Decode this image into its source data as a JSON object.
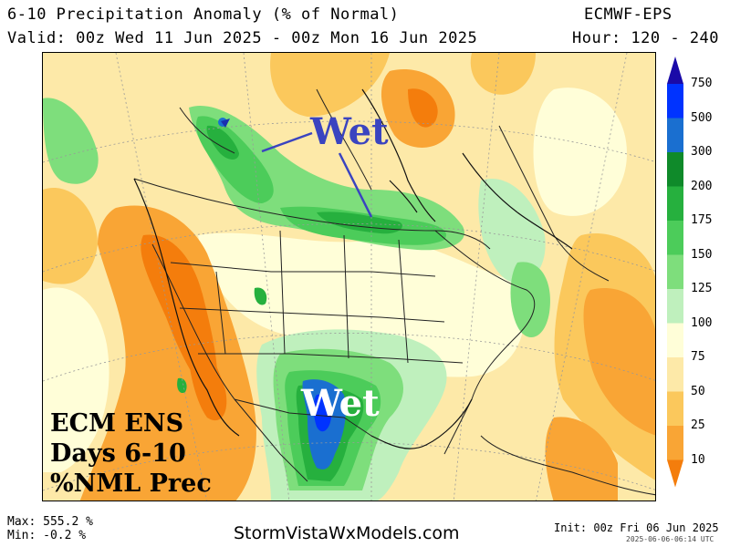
{
  "header": {
    "title": "6-10 Precipitation Anomaly (% of Normal)",
    "model": "ECMWF-EPS",
    "valid": "Valid: 00z Wed 11 Jun 2025 - 00z Mon 16 Jun 2025",
    "hours": "Hour: 120 - 240"
  },
  "annotations": {
    "wet_north": "Wet",
    "wet_south": "Wet",
    "box_line1": "ECM ENS",
    "box_line2": "Days 6-10",
    "box_line3": "%NML Prec"
  },
  "legend": {
    "levels": [
      "750",
      "500",
      "300",
      "200",
      "175",
      "150",
      "125",
      "100",
      "75",
      "50",
      "25",
      "10"
    ],
    "colors": [
      "#1a0aa8",
      "#0033ff",
      "#1a6fd0",
      "#0f8a2a",
      "#26b03e",
      "#4ccc5a",
      "#7ede7c",
      "#bff0bd",
      "#fffed8",
      "#fde9a8",
      "#fbc85c",
      "#f9a535",
      "#f47d0c"
    ]
  },
  "footer": {
    "max": "Max: 555.2 %",
    "min": "Min: -0.2 %",
    "site": "StormVistaWxModels.com",
    "init": "Init: 00z Fri 06 Jun 2025",
    "stamp": "2025-06-06-06:14 UTC"
  }
}
